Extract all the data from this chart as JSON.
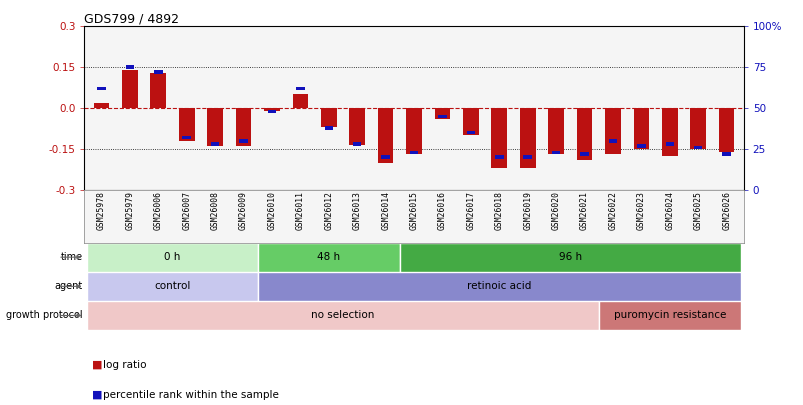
{
  "title": "GDS799 / 4892",
  "samples": [
    "GSM25978",
    "GSM25979",
    "GSM26006",
    "GSM26007",
    "GSM26008",
    "GSM26009",
    "GSM26010",
    "GSM26011",
    "GSM26012",
    "GSM26013",
    "GSM26014",
    "GSM26015",
    "GSM26016",
    "GSM26017",
    "GSM26018",
    "GSM26019",
    "GSM26020",
    "GSM26021",
    "GSM26022",
    "GSM26023",
    "GSM26024",
    "GSM26025",
    "GSM26026"
  ],
  "log_ratio": [
    0.02,
    0.14,
    0.13,
    -0.12,
    -0.14,
    -0.14,
    -0.01,
    0.05,
    -0.07,
    -0.135,
    -0.2,
    -0.17,
    -0.04,
    -0.1,
    -0.22,
    -0.22,
    -0.17,
    -0.19,
    -0.17,
    -0.15,
    -0.175,
    -0.15,
    -0.16
  ],
  "percentile_rank": [
    62,
    75,
    72,
    32,
    28,
    30,
    48,
    62,
    38,
    28,
    20,
    23,
    45,
    35,
    20,
    20,
    23,
    22,
    30,
    27,
    28,
    26,
    22
  ],
  "ylim_left": [
    -0.3,
    0.3
  ],
  "ylim_right": [
    0,
    100
  ],
  "yticks_left": [
    -0.3,
    -0.15,
    0.0,
    0.15,
    0.3
  ],
  "yticks_right": [
    0,
    25,
    50,
    75,
    100
  ],
  "bar_color_red": "#bb1111",
  "bar_color_blue": "#1111bb",
  "zero_line_color": "#cc2222",
  "dotted_line_color": "#000000",
  "time_groups": [
    {
      "label": "0 h",
      "start": 0,
      "end": 6
    },
    {
      "label": "48 h",
      "start": 6,
      "end": 11
    },
    {
      "label": "96 h",
      "start": 11,
      "end": 23
    }
  ],
  "time_colors": [
    "#c8f0c8",
    "#66cc66",
    "#44aa44"
  ],
  "agent_groups": [
    {
      "label": "control",
      "start": 0,
      "end": 6
    },
    {
      "label": "retinoic acid",
      "start": 6,
      "end": 23
    }
  ],
  "agent_colors": [
    "#c8c8ee",
    "#8888cc"
  ],
  "growth_groups": [
    {
      "label": "no selection",
      "start": 0,
      "end": 18
    },
    {
      "label": "puromycin resistance",
      "start": 18,
      "end": 23
    }
  ],
  "growth_colors": [
    "#f0c8c8",
    "#cc7777"
  ],
  "bg_color": "#ffffff",
  "bar_width": 0.55,
  "blue_bar_width": 0.3,
  "blue_bar_height": 0.02,
  "main_bg": "#ffffff",
  "plot_bg": "#f5f5f5"
}
